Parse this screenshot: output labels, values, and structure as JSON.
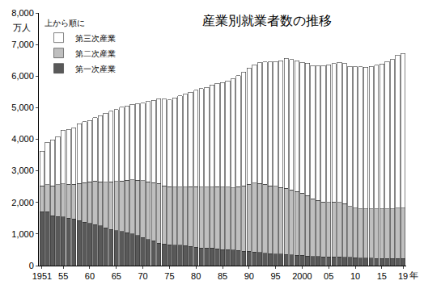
{
  "chart_data": {
    "type": "bar",
    "title": "産業別就業者数の推移",
    "x_label": "年",
    "y_label": "万人",
    "legend_title": "上から順に",
    "stacked": true,
    "grid": false,
    "legend": "top-left",
    "categories": [
      "1951",
      null,
      null,
      null,
      "55",
      null,
      null,
      null,
      null,
      "60",
      null,
      null,
      null,
      null,
      "65",
      null,
      null,
      null,
      null,
      "70",
      null,
      null,
      null,
      null,
      "75",
      null,
      null,
      null,
      null,
      "80",
      null,
      null,
      null,
      null,
      "85",
      null,
      null,
      null,
      null,
      "90",
      null,
      null,
      null,
      null,
      "95",
      null,
      null,
      null,
      null,
      "2000",
      null,
      null,
      null,
      null,
      "05",
      null,
      null,
      null,
      null,
      "10",
      null,
      null,
      null,
      null,
      "15",
      null,
      null,
      null,
      "19"
    ],
    "series": [
      {
        "name": "第一次産業",
        "color": "#595959",
        "values": [
          1700,
          1710,
          1580,
          1550,
          1540,
          1500,
          1480,
          1430,
          1380,
          1340,
          1300,
          1260,
          1200,
          1150,
          1110,
          1080,
          1040,
          1000,
          950,
          890,
          830,
          780,
          710,
          680,
          660,
          640,
          640,
          630,
          610,
          580,
          560,
          550,
          550,
          530,
          510,
          500,
          490,
          480,
          460,
          450,
          430,
          410,
          390,
          380,
          370,
          360,
          350,
          340,
          330,
          320,
          300,
          290,
          290,
          280,
          280,
          270,
          270,
          260,
          260,
          250,
          240,
          240,
          240,
          230,
          230,
          220,
          220,
          230,
          220
        ]
      },
      {
        "name": "第二次産業",
        "color": "#bfbfbf",
        "values": [
          820,
          850,
          940,
          1010,
          1050,
          1070,
          1100,
          1170,
          1240,
          1310,
          1380,
          1390,
          1440,
          1500,
          1550,
          1600,
          1660,
          1710,
          1750,
          1800,
          1820,
          1840,
          1890,
          1850,
          1840,
          1850,
          1850,
          1860,
          1890,
          1920,
          1930,
          1930,
          1940,
          1970,
          1980,
          1980,
          1970,
          2020,
          2070,
          2120,
          2180,
          2190,
          2180,
          2150,
          2140,
          2110,
          2100,
          2060,
          2010,
          1980,
          1920,
          1830,
          1780,
          1730,
          1720,
          1740,
          1730,
          1700,
          1610,
          1570,
          1560,
          1550,
          1550,
          1560,
          1560,
          1570,
          1580,
          1590,
          1600
        ]
      },
      {
        "name": "第三次産業",
        "color": "#ffffff",
        "values": [
          1100,
          1340,
          1460,
          1520,
          1700,
          1740,
          1790,
          1890,
          1940,
          1950,
          2000,
          2100,
          2190,
          2240,
          2280,
          2340,
          2360,
          2390,
          2420,
          2450,
          2550,
          2610,
          2680,
          2740,
          2750,
          2820,
          2880,
          2930,
          2990,
          3050,
          3110,
          3160,
          3230,
          3270,
          3310,
          3370,
          3450,
          3510,
          3600,
          3690,
          3750,
          3820,
          3880,
          3920,
          3950,
          4020,
          4110,
          4120,
          4140,
          4140,
          4190,
          4210,
          4250,
          4320,
          4360,
          4380,
          4430,
          4430,
          4440,
          4480,
          4490,
          4490,
          4520,
          4560,
          4590,
          4670,
          4730,
          4840,
          4900
        ]
      }
    ],
    "ylim": [
      0,
      8000
    ],
    "yticks": [
      0,
      {
        "value": 1000,
        "label": "1,000"
      },
      {
        "value": 2000,
        "label": "2,000"
      },
      {
        "value": 3000,
        "label": "3,000"
      },
      {
        "value": 4000,
        "label": "4,000"
      },
      {
        "value": 5000,
        "label": "5,000"
      },
      {
        "value": 6000,
        "label": "6,000"
      },
      {
        "value": 7000,
        "label": "7,000"
      },
      {
        "value": 8000,
        "label": "8,000"
      }
    ]
  }
}
